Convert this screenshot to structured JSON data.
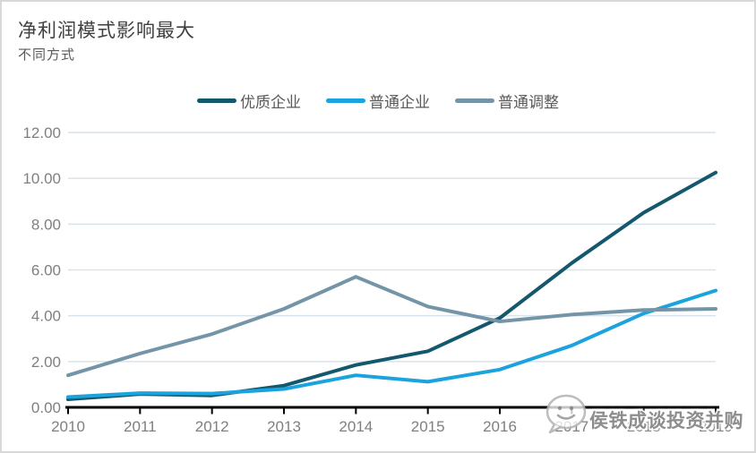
{
  "chart_data": {
    "type": "line",
    "title": "净利润模式影响最大",
    "subtitle": "不同方式",
    "categories": [
      "2010",
      "2011",
      "2012",
      "2013",
      "2014",
      "2015",
      "2016",
      "2017",
      "2018",
      "2019"
    ],
    "series": [
      {
        "name": "优质企业",
        "color": "#14586e",
        "values": [
          0.35,
          0.58,
          0.52,
          0.95,
          1.85,
          2.45,
          3.9,
          6.3,
          8.5,
          10.25
        ]
      },
      {
        "name": "普通企业",
        "color": "#1aa3dc",
        "values": [
          0.45,
          0.62,
          0.6,
          0.8,
          1.4,
          1.12,
          1.65,
          2.7,
          4.1,
          5.1
        ]
      },
      {
        "name": "普通调整",
        "color": "#7495a8",
        "values": [
          1.4,
          2.35,
          3.2,
          4.3,
          5.7,
          4.4,
          3.75,
          4.05,
          4.25,
          4.3
        ]
      }
    ],
    "ylim": [
      0,
      12
    ],
    "y_ticks": [
      0,
      2,
      4,
      6,
      8,
      10,
      12
    ],
    "y_tick_labels": [
      "0.00",
      "2.00",
      "4.00",
      "6.00",
      "8.00",
      "10.00",
      "12.00"
    ],
    "grid": "horizontal",
    "legend_position": "top-center",
    "xlabel": "",
    "ylabel": "",
    "colors": {
      "axis": "#000000",
      "gridline": "#d9e3ea",
      "tick_label": "#7f7f7f"
    }
  },
  "watermark": {
    "text": "侯铁成谈投资并购",
    "logo": "smiley-chat-bubble-logo"
  }
}
